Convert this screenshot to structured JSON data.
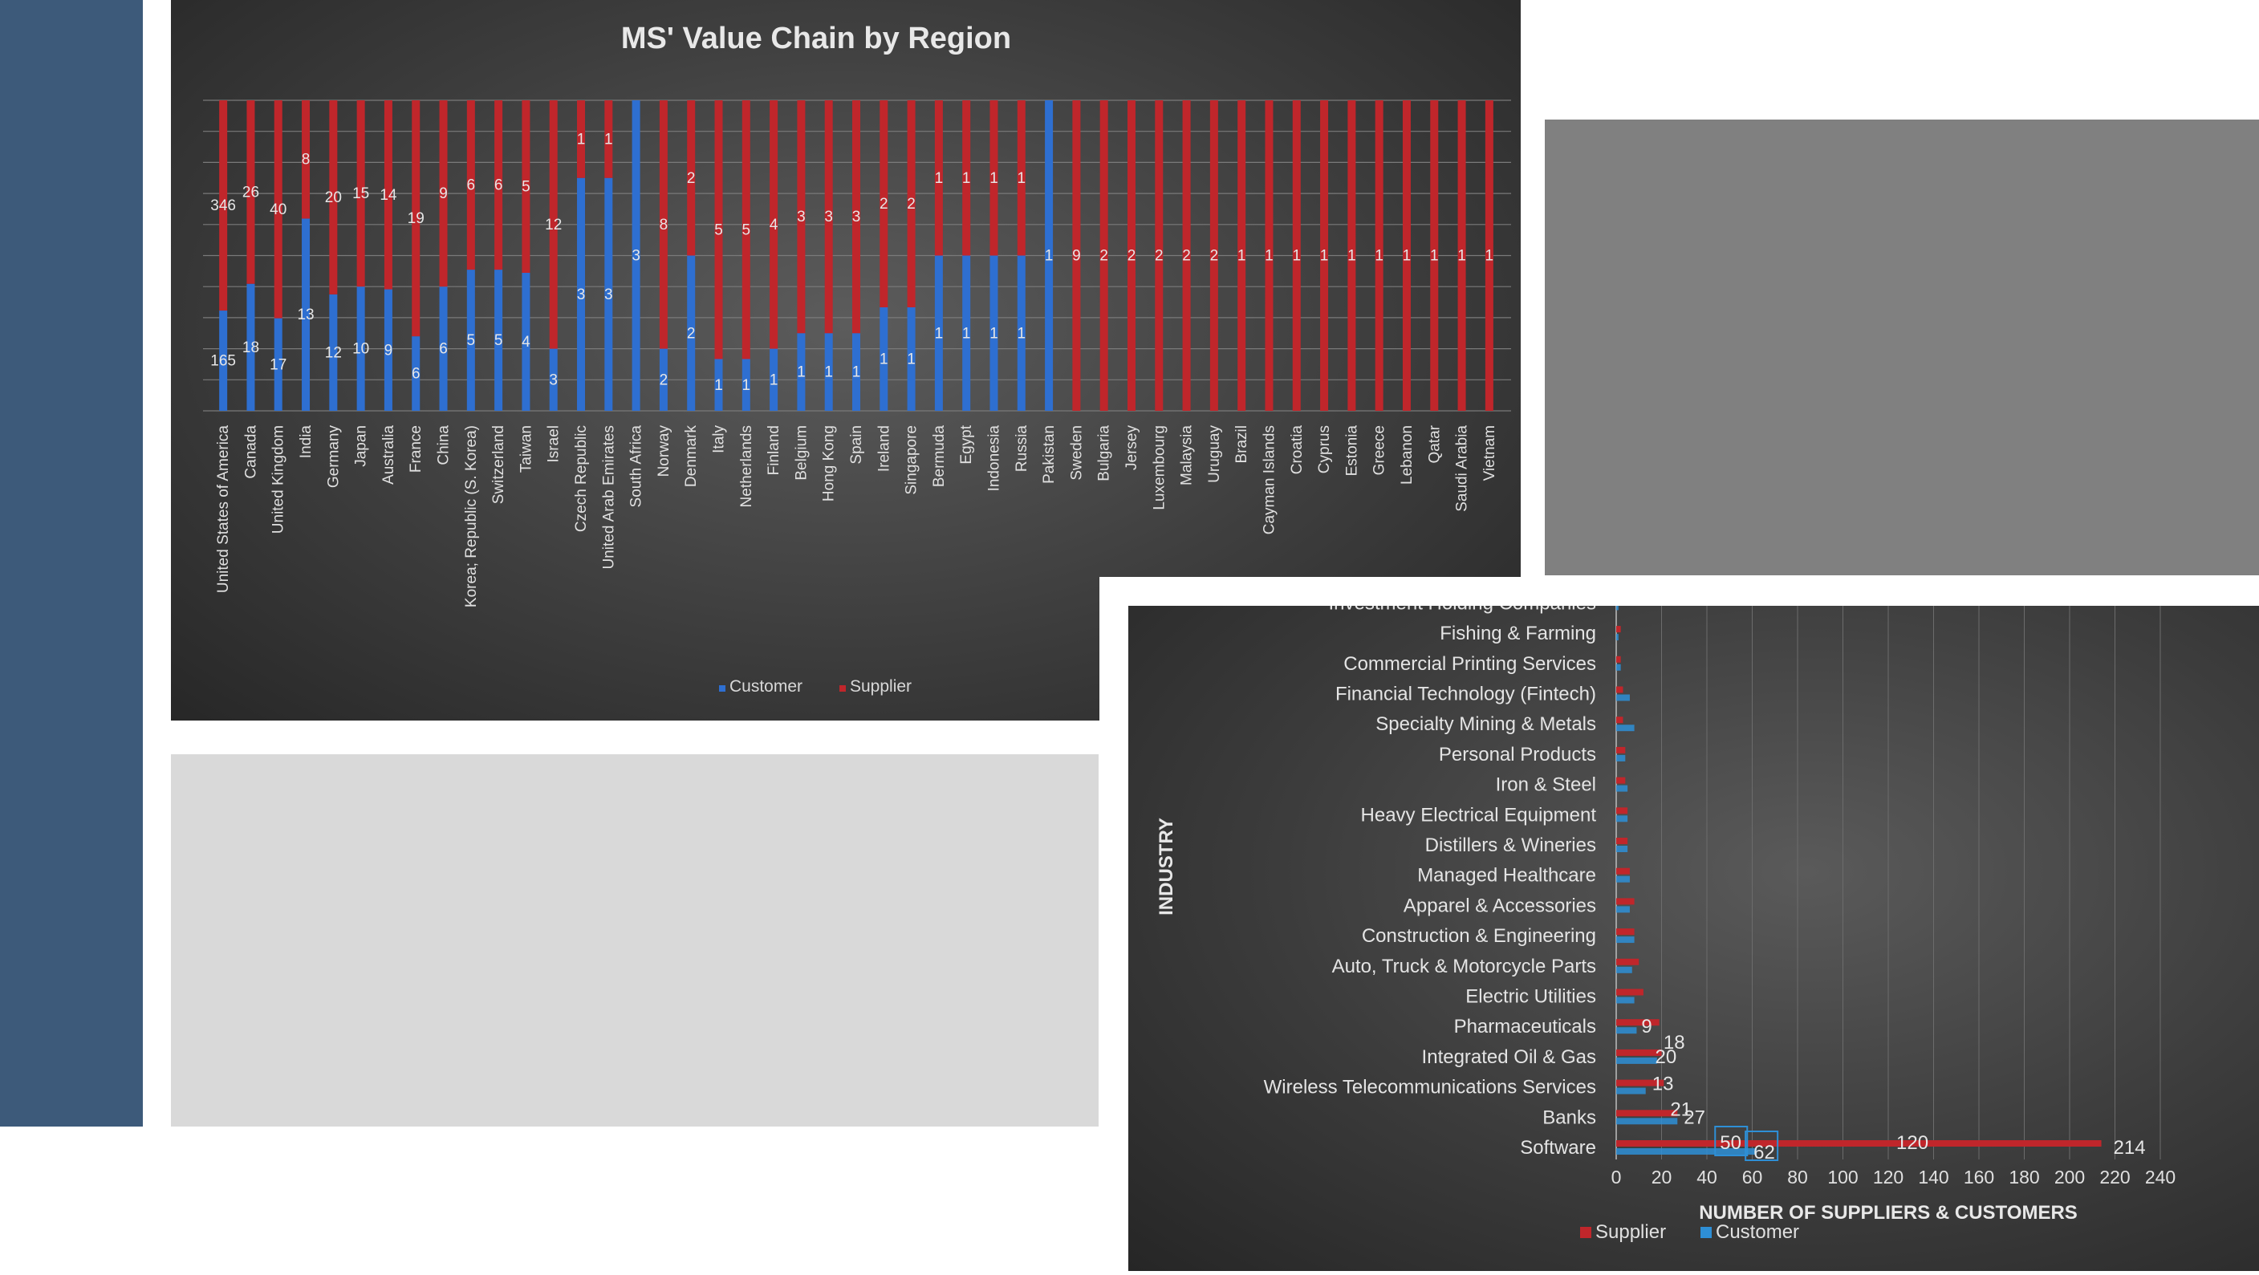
{
  "chart_data": [
    {
      "type": "bar",
      "stacked": "percent",
      "title": "MS' Value Chain by Region",
      "xlabel": "",
      "ylabel": "",
      "legend_position": "bottom",
      "grid": true,
      "categories": [
        "United States of America",
        "Canada",
        "United Kingdom",
        "India",
        "Germany",
        "Japan",
        "Australia",
        "France",
        "China",
        "Korea; Republic (S. Korea)",
        "Switzerland",
        "Taiwan",
        "Israel",
        "Czech Republic",
        "United Arab Emirates",
        "South Africa",
        "Norway",
        "Denmark",
        "Italy",
        "Netherlands",
        "Finland",
        "Belgium",
        "Hong Kong",
        "Spain",
        "Ireland",
        "Singapore",
        "Bermuda",
        "Egypt",
        "Indonesia",
        "Russia",
        "Pakistan",
        "Sweden",
        "Bulgaria",
        "Jersey",
        "Luxembourg",
        "Malaysia",
        "Uruguay",
        "Brazil",
        "Cayman Islands",
        "Croatia",
        "Cyprus",
        "Estonia",
        "Greece",
        "Lebanon",
        "Qatar",
        "Saudi Arabia",
        "Vietnam"
      ],
      "series": [
        {
          "name": "Customer",
          "color": "#2e6fd1",
          "values": [
            165,
            18,
            17,
            13,
            12,
            10,
            9,
            6,
            6,
            5,
            5,
            4,
            3,
            3,
            3,
            3,
            2,
            2,
            1,
            1,
            1,
            1,
            1,
            1,
            1,
            1,
            1,
            1,
            1,
            1,
            1,
            0,
            0,
            0,
            0,
            0,
            0,
            0,
            0,
            0,
            0,
            0,
            0,
            0,
            0,
            0,
            0
          ]
        },
        {
          "name": "Supplier",
          "color": "#c0262b",
          "values": [
            346,
            26,
            40,
            8,
            20,
            15,
            14,
            19,
            9,
            6,
            6,
            5,
            12,
            1,
            1,
            0,
            8,
            2,
            5,
            5,
            4,
            3,
            3,
            3,
            2,
            2,
            1,
            1,
            1,
            1,
            0,
            9,
            2,
            2,
            2,
            2,
            2,
            1,
            1,
            1,
            1,
            1,
            1,
            1,
            1,
            1,
            1
          ]
        }
      ]
    },
    {
      "type": "bar",
      "orientation": "horizontal",
      "title": "",
      "xlabel": "NUMBER OF SUPPLIERS & CUSTOMERS",
      "ylabel": "INDUSTRY",
      "xlim": [
        0,
        240
      ],
      "xticks": [
        "0",
        "20",
        "40",
        "60",
        "80",
        "100",
        "120",
        "140",
        "160",
        "180",
        "200",
        "220",
        "240"
      ],
      "legend_position": "bottom",
      "grid": true,
      "categories": [
        "Software",
        "Banks",
        "Wireless Telecommunications Services",
        "Integrated Oil & Gas",
        "Pharmaceuticals",
        "Electric Utilities",
        "Auto, Truck & Motorcycle Parts",
        "Construction & Engineering",
        "Apparel & Accessories",
        "Managed Healthcare",
        "Distillers & Wineries",
        "Heavy Electrical Equipment",
        "Iron & Steel",
        "Personal Products",
        "Specialty Mining & Metals",
        "Financial Technology (Fintech)",
        "Commercial Printing Services",
        "Fishing & Farming",
        "Investment Holding Companies"
      ],
      "series": [
        {
          "name": "Supplier",
          "color": "#c0262b",
          "values": [
            214,
            27,
            21,
            20,
            19,
            12,
            10,
            8,
            8,
            6,
            5,
            5,
            4,
            4,
            3,
            3,
            2,
            2,
            1
          ]
        },
        {
          "name": "Customer",
          "color": "#2e8fd6",
          "values": [
            62,
            27,
            13,
            18,
            9,
            8,
            7,
            8,
            6,
            6,
            5,
            5,
            5,
            4,
            8,
            6,
            2,
            1,
            1
          ]
        }
      ],
      "extra_value_labels": [
        "50",
        "120"
      ]
    }
  ]
}
